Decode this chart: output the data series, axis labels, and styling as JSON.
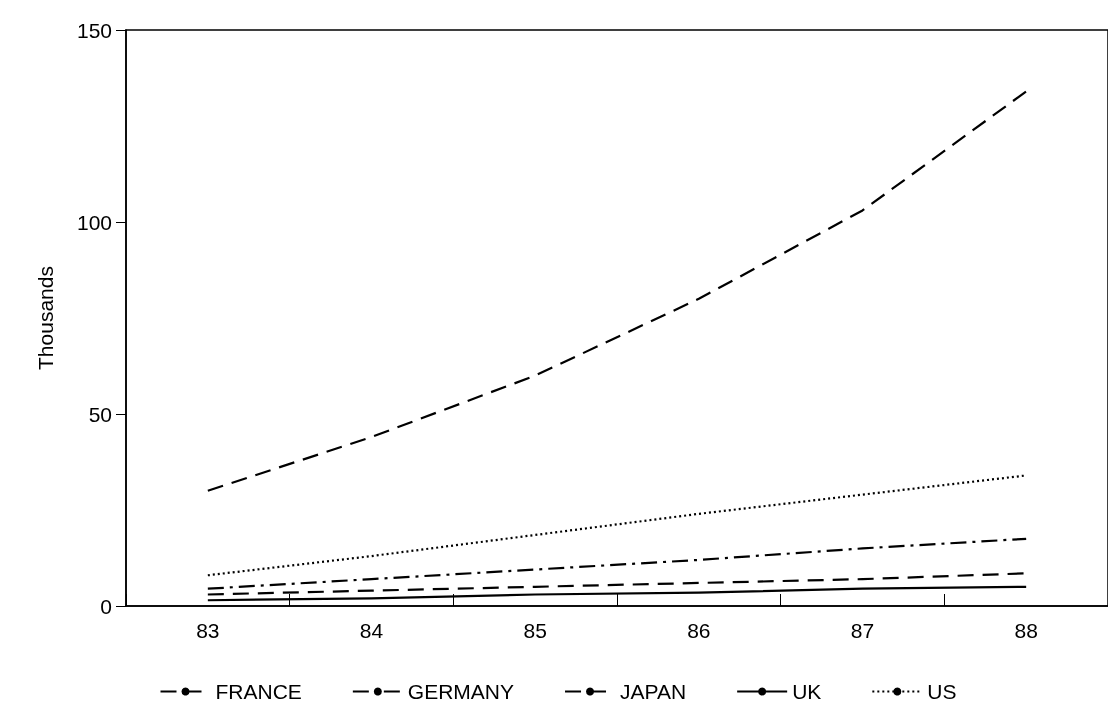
{
  "chart_data": {
    "type": "line",
    "ylabel": "Thousands",
    "categories": [
      "83",
      "84",
      "85",
      "86",
      "87",
      "88"
    ],
    "series": [
      {
        "name": "FRANCE",
        "color": "#000000",
        "line_style": "dashed",
        "values": [
          30,
          44,
          60,
          80,
          103,
          134
        ]
      },
      {
        "name": "GERMANY",
        "color": "#000000",
        "line_style": "dashdot",
        "values": [
          4.5,
          7,
          9.5,
          12,
          15,
          17.5
        ]
      },
      {
        "name": "JAPAN",
        "color": "#000000",
        "line_style": "dashed",
        "values": [
          3,
          4,
          5,
          6,
          7,
          8.5
        ]
      },
      {
        "name": "UK",
        "color": "#000000",
        "line_style": "solid",
        "values": [
          1.5,
          2,
          3,
          3.5,
          4.5,
          5
        ]
      },
      {
        "name": "US",
        "color": "#000000",
        "line_style": "dotted",
        "values": [
          8,
          13,
          18.5,
          24,
          29,
          34
        ]
      }
    ],
    "ylim": [
      0,
      150
    ],
    "yticks": [
      0,
      50,
      100,
      150
    ],
    "grid": false,
    "legend": "bottom",
    "marker": "none"
  }
}
